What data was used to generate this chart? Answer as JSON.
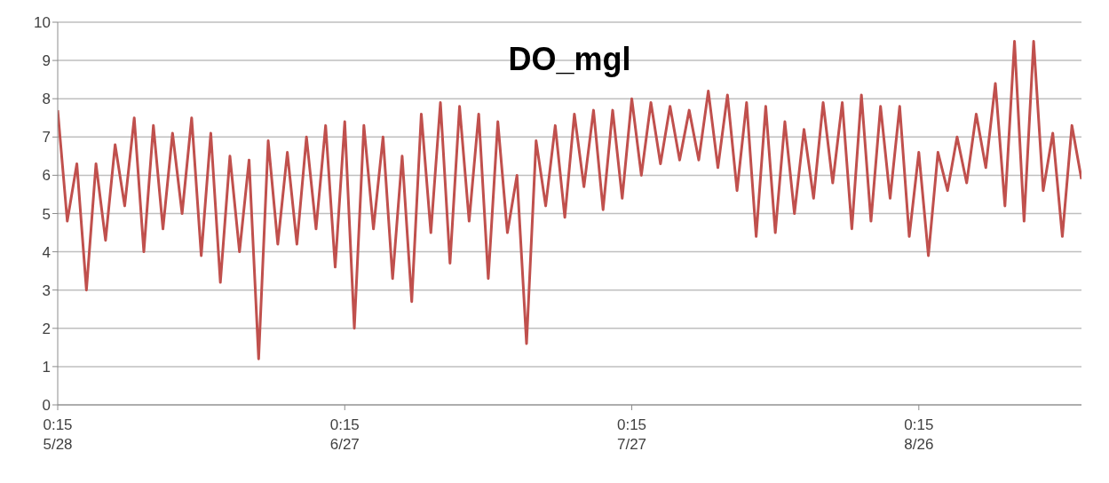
{
  "chart_data": {
    "type": "line",
    "title": "DO_mgl",
    "x": [
      "--05-28T00:15",
      "--05-29T00:15",
      "--05-30T00:15",
      "--05-31T00:15",
      "--06-01T00:15",
      "--06-02T00:15",
      "--06-03T00:15",
      "--06-04T00:15",
      "--06-05T00:15",
      "--06-06T00:15",
      "--06-07T00:15",
      "--06-08T00:15",
      "--06-09T00:15",
      "--06-10T00:15",
      "--06-11T00:15",
      "--06-12T00:15",
      "--06-13T00:15",
      "--06-14T00:15",
      "--06-15T00:15",
      "--06-16T00:15",
      "--06-17T00:15",
      "--06-18T00:15",
      "--06-19T00:15",
      "--06-20T00:15",
      "--06-21T00:15",
      "--06-22T00:15",
      "--06-23T00:15",
      "--06-24T00:15",
      "--06-25T00:15",
      "--06-26T00:15",
      "--06-27T00:15",
      "--06-28T00:15",
      "--06-29T00:15",
      "--06-30T00:15",
      "--07-01T00:15",
      "--07-02T00:15",
      "--07-03T00:15",
      "--07-04T00:15",
      "--07-05T00:15",
      "--07-06T00:15",
      "--07-07T00:15",
      "--07-08T00:15",
      "--07-09T00:15",
      "--07-10T00:15",
      "--07-11T00:15",
      "--07-12T00:15",
      "--07-13T00:15",
      "--07-14T00:15",
      "--07-15T00:15",
      "--07-16T00:15",
      "--07-17T00:15",
      "--07-18T00:15",
      "--07-19T00:15",
      "--07-20T00:15",
      "--07-21T00:15",
      "--07-22T00:15",
      "--07-23T00:15",
      "--07-24T00:15",
      "--07-25T00:15",
      "--07-26T00:15",
      "--07-27T00:15",
      "--07-28T00:15",
      "--07-29T00:15",
      "--07-30T00:15",
      "--07-31T00:15",
      "--08-01T00:15",
      "--08-02T00:15",
      "--08-03T00:15",
      "--08-04T00:15",
      "--08-05T00:15",
      "--08-06T00:15",
      "--08-07T00:15",
      "--08-08T00:15",
      "--08-09T00:15",
      "--08-10T00:15",
      "--08-11T00:15",
      "--08-12T00:15",
      "--08-13T00:15",
      "--08-14T00:15",
      "--08-15T00:15",
      "--08-16T00:15",
      "--08-17T00:15",
      "--08-18T00:15",
      "--08-19T00:15",
      "--08-20T00:15",
      "--08-21T00:15",
      "--08-22T00:15",
      "--08-23T00:15",
      "--08-24T00:15",
      "--08-25T00:15",
      "--08-26T00:15",
      "--08-27T00:15",
      "--08-28T00:15",
      "--08-29T00:15",
      "--08-30T00:15",
      "--08-31T00:15",
      "--09-01T00:15",
      "--09-02T00:15",
      "--09-03T00:15",
      "--09-04T00:15",
      "--09-05T00:15",
      "--09-06T00:15",
      "--09-07T00:15",
      "--09-08T00:15",
      "--09-09T00:15",
      "--09-10T00:15",
      "--09-11T00:15",
      "--09-12T00:15"
    ],
    "series": [
      {
        "color": "#c0504d",
        "values": [
          7.7,
          4.8,
          6.3,
          3.0,
          6.3,
          4.3,
          6.8,
          5.2,
          7.5,
          4.0,
          7.3,
          4.6,
          7.1,
          5.0,
          7.5,
          3.9,
          7.1,
          3.2,
          6.5,
          4.0,
          6.4,
          1.2,
          6.9,
          4.2,
          6.6,
          4.2,
          7.0,
          4.6,
          7.3,
          3.6,
          7.4,
          2.0,
          7.3,
          4.6,
          7.0,
          3.3,
          6.5,
          2.7,
          7.6,
          4.5,
          7.9,
          3.7,
          7.8,
          4.8,
          7.6,
          3.3,
          7.4,
          4.5,
          6.0,
          1.6,
          6.9,
          5.2,
          7.3,
          4.9,
          7.6,
          5.7,
          7.7,
          5.1,
          7.7,
          5.4,
          8.0,
          6.0,
          7.9,
          6.3,
          7.8,
          6.4,
          7.7,
          6.4,
          8.2,
          6.2,
          8.1,
          5.6,
          7.9,
          4.4,
          7.8,
          4.5,
          7.4,
          5.0,
          7.2,
          5.4,
          7.9,
          5.8,
          7.9,
          4.6,
          8.1,
          4.8,
          7.8,
          5.4,
          7.8,
          4.4,
          6.6,
          3.9,
          6.6,
          5.6,
          7.0,
          5.8,
          7.6,
          6.2,
          8.4,
          5.2,
          9.5,
          4.8,
          9.5,
          5.6,
          7.1,
          4.4,
          7.3,
          5.9
        ]
      }
    ],
    "xlim": [
      "--05-28T00:15",
      "--09-12T00:15"
    ],
    "xticks": [
      {
        "value": "--05-28T00:15",
        "label": "0:15\n5/28"
      },
      {
        "value": "--06-27T00:15",
        "label": "0:15\n6/27"
      },
      {
        "value": "--07-27T00:15",
        "label": "0:15\n7/27"
      },
      {
        "value": "--08-26T00:15",
        "label": "0:15\n8/26"
      }
    ],
    "ylim": [
      0,
      10
    ],
    "yticks": [
      0,
      1,
      2,
      3,
      4,
      5,
      6,
      7,
      8,
      9,
      10
    ],
    "grid": "y",
    "legend": false,
    "marker": "none",
    "line_style": "solid"
  }
}
